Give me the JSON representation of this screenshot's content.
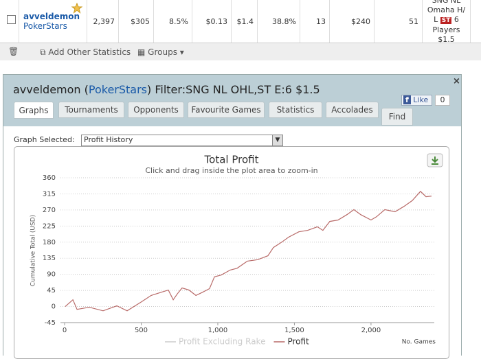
{
  "table": {
    "player": "avveldemon",
    "site": "PokerStars",
    "cells": [
      "2,397",
      "$305",
      "8.5%",
      "$0.13",
      "$1.4",
      "38.8%",
      "13",
      "$240",
      "51"
    ],
    "game": [
      "SNG NL",
      "Omaha H/",
      "L",
      "ST",
      "6",
      "Players",
      "$1.5"
    ]
  },
  "toolbar": {
    "add": "Add Other Statistics",
    "groups": "Groups"
  },
  "panel": {
    "title": [
      "avveldemon (",
      "PokerStars",
      ") Filter:SNG NL OHL,ST E:6 $1.5"
    ],
    "tabs": [
      "Graphs",
      "Tournaments",
      "Opponents",
      "Favourite Games",
      "Statistics",
      "Accolades",
      "Find"
    ],
    "like": "Like",
    "like_count": "0",
    "graph_label": "Graph Selected:",
    "graph_option": "Profit History"
  },
  "chart_data": {
    "type": "line",
    "title": "Total Profit",
    "subtitle": "Click and drag inside the plot area to zoom-in",
    "y_label": "Cumulative Total (USD)",
    "x_label": "No. Games",
    "x": [
      4,
      54,
      81,
      161,
      251,
      341,
      408,
      498,
      565,
      632,
      677,
      709,
      735,
      767,
      812,
      857,
      901,
      946,
      978,
      1022,
      1081,
      1126,
      1193,
      1260,
      1327,
      1363,
      1417,
      1462,
      1529,
      1587,
      1650,
      1686,
      1731,
      1785,
      1843,
      1888,
      1933,
      2000,
      2036,
      2090,
      2157,
      2215,
      2269,
      2323,
      2359,
      2395
    ],
    "series": [
      {
        "name": "Profit Excluding Rake",
        "color": "#cccccc",
        "visible": false
      },
      {
        "name": "Profit",
        "color": "#b86a68",
        "visible": true,
        "values": [
          0,
          19,
          -8,
          -2,
          -12,
          2,
          -12,
          12,
          31,
          40,
          46,
          19,
          35,
          52,
          46,
          31,
          40,
          50,
          83,
          88,
          102,
          107,
          127,
          131,
          142,
          165,
          180,
          194,
          209,
          213,
          223,
          213,
          238,
          242,
          257,
          271,
          257,
          242,
          251,
          271,
          265,
          280,
          296,
          322,
          307,
          309
        ]
      }
    ],
    "xlim": [
      -27,
      2413
    ],
    "ylim": [
      -45,
      360
    ],
    "xticks": [
      0,
      500,
      {
        "value": 1000,
        "label": "1,000"
      },
      {
        "value": 1500,
        "label": "1,500"
      },
      {
        "value": 2000,
        "label": "2,000"
      }
    ],
    "yticks": [
      -45,
      0,
      45,
      90,
      135,
      180,
      225,
      270,
      315,
      360
    ],
    "grid": true
  }
}
